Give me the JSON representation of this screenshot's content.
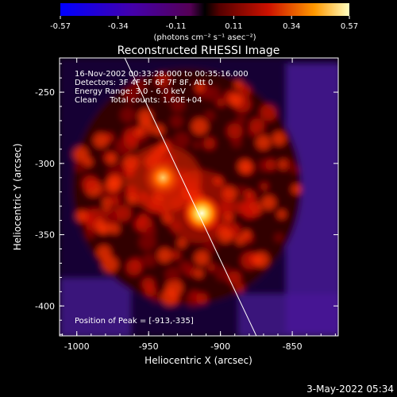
{
  "colorbar": {
    "ticks": [
      "-0.57",
      "-0.34",
      "-0.11",
      "0.11",
      "0.34",
      "0.57"
    ],
    "unit_label": "(photons cm⁻² s⁻¹ asec⁻²)"
  },
  "chart_data": {
    "type": "heatmap",
    "title": "Reconstructed RHESSI Image",
    "xlabel": "Heliocentric X (arcsec)",
    "ylabel": "Heliocentric Y (arcsec)",
    "xlim": [
      -1012,
      -818
    ],
    "ylim": [
      -421,
      -226
    ],
    "xticks": [
      -1000,
      -950,
      -900,
      -850
    ],
    "yticks": [
      -250,
      -300,
      -350,
      -400
    ],
    "value_range": [
      -0.57,
      0.57
    ],
    "annotations": [
      "16-Nov-2002 00:33:28.000 to 00:35:16.000",
      "Detectors: 3F 4F 5F 6F 7F 8F, Att 0",
      "Energy Range: 3.0 - 6.0 keV",
      "Clean     Total counts: 1.60E+04"
    ],
    "peak_label": "Position of Peak = [-913,-335]",
    "sources": [
      {
        "x": -913,
        "y": -335,
        "intensity": 0.57
      },
      {
        "x": -940,
        "y": -310,
        "intensity": 0.45
      }
    ],
    "limb_line": [
      [
        -968,
        -223
      ],
      [
        -875,
        -421
      ]
    ]
  },
  "footer": {
    "timestamp": "3-May-2022 05:34"
  }
}
